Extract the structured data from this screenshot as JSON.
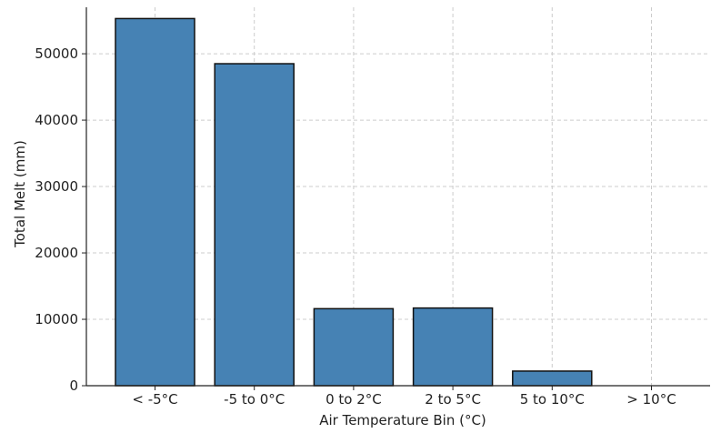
{
  "chart_data": {
    "type": "bar",
    "categories": [
      "< -5°C",
      "-5 to 0°C",
      "0 to 2°C",
      "2 to 5°C",
      "5 to 10°C",
      "> 10°C"
    ],
    "values": [
      55300,
      48500,
      11600,
      11700,
      2200,
      0
    ],
    "xlabel": "Air Temperature Bin (°C)",
    "ylabel": "Total Melt (mm)",
    "ylim": [
      0,
      57000
    ],
    "yticks": [
      0,
      10000,
      20000,
      30000,
      40000,
      50000
    ],
    "grid": true,
    "legend": "none",
    "colors": {
      "bar_fill": "#4682b4",
      "bar_edge": "#111111",
      "grid": "#cccccc",
      "axis": "#222222"
    }
  }
}
